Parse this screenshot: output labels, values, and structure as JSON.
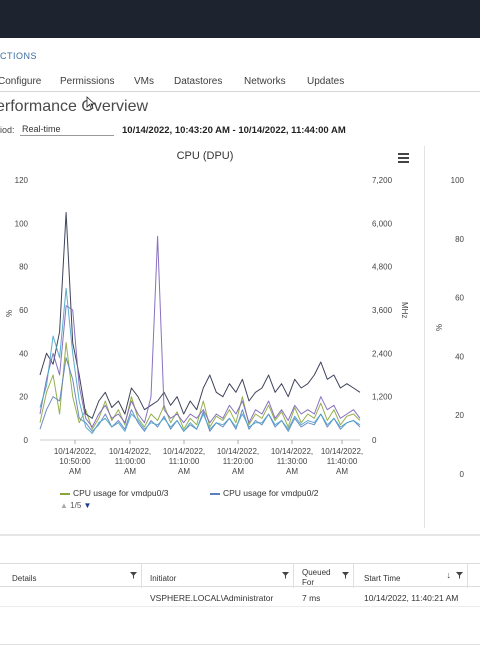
{
  "header": {
    "actions_label": "CTIONS"
  },
  "tabs": [
    {
      "label": "Configure"
    },
    {
      "label": "Permissions"
    },
    {
      "label": "VMs"
    },
    {
      "label": "Datastores"
    },
    {
      "label": "Networks"
    },
    {
      "label": "Updates"
    }
  ],
  "page_title": "erformance Overview",
  "period": {
    "label": "iod:",
    "value": "Real-time"
  },
  "time_range": "10/14/2022, 10:43:20 AM - 10/14/2022, 11:44:00 AM",
  "chart_data": [
    {
      "type": "line",
      "title": "CPU (DPU)",
      "ylabel": "%",
      "y2label": "MHz",
      "ylim": [
        0,
        120
      ],
      "y2lim": [
        0,
        7200
      ],
      "yticks": [
        "120",
        "100",
        "80",
        "60",
        "40",
        "20",
        "0"
      ],
      "y2ticks": [
        "7,200",
        "6,000",
        "4,800",
        "3,600",
        "2,400",
        "1,200",
        "0"
      ],
      "xticks": [
        [
          "10/14/2022,",
          "10:50:00",
          "AM"
        ],
        [
          "10/14/2022,",
          "11:00:00",
          "AM"
        ],
        [
          "10/14/2022,",
          "11:10:00",
          "AM"
        ],
        [
          "10/14/2022,",
          "11:20:00",
          "AM"
        ],
        [
          "10/14/2022,",
          "11:30:00",
          "AM"
        ],
        [
          "10/14/2022,",
          "11:40:00",
          "AM"
        ]
      ],
      "series": [
        {
          "name": "CPU usage for vmdpu0/3",
          "color": "#8aa63a",
          "values": [
            8,
            22,
            30,
            12,
            45,
            20,
            8,
            14,
            5,
            10,
            18,
            9,
            14,
            7,
            20,
            10,
            6,
            12,
            9,
            16,
            8,
            13,
            5,
            10,
            7,
            18,
            6,
            11,
            9,
            14,
            8,
            20,
            7,
            12,
            10,
            16,
            9,
            13,
            6,
            15,
            8,
            12,
            10,
            17,
            9,
            14,
            7,
            11,
            12,
            9
          ]
        },
        {
          "name": "CPU usage for vmdpu0/2",
          "color": "#5a80c0",
          "values": [
            5,
            14,
            20,
            18,
            38,
            28,
            10,
            8,
            4,
            7,
            12,
            6,
            9,
            5,
            14,
            8,
            4,
            9,
            6,
            11,
            5,
            9,
            4,
            7,
            5,
            13,
            4,
            8,
            6,
            10,
            5,
            14,
            5,
            9,
            7,
            12,
            6,
            9,
            4,
            10,
            6,
            8,
            7,
            12,
            6,
            10,
            5,
            8,
            9,
            6
          ]
        },
        {
          "values": [
            30,
            40,
            35,
            50,
            105,
            45,
            30,
            12,
            10,
            18,
            22,
            15,
            18,
            12,
            24,
            20,
            14,
            16,
            18,
            22,
            16,
            20,
            12,
            18,
            14,
            24,
            30,
            22,
            20,
            26,
            22,
            28,
            18,
            22,
            24,
            30,
            22,
            26,
            20,
            28,
            24,
            26,
            30,
            36,
            28,
            30,
            24,
            26,
            24,
            22
          ],
          "color": "#2a2f48"
        },
        {
          "values": [
            12,
            28,
            40,
            30,
            62,
            60,
            25,
            10,
            6,
            12,
            16,
            10,
            12,
            8,
            18,
            12,
            8,
            20,
            94,
            14,
            10,
            12,
            8,
            12,
            10,
            14,
            8,
            12,
            10,
            16,
            12,
            18,
            8,
            14,
            12,
            18,
            10,
            14,
            9,
            16,
            12,
            14,
            12,
            20,
            14,
            16,
            10,
            12,
            14,
            10
          ],
          "color": "#7b62b8"
        },
        {
          "values": [
            15,
            25,
            48,
            38,
            70,
            40,
            18,
            6,
            3,
            8,
            10,
            6,
            8,
            4,
            12,
            9,
            5,
            8,
            7,
            10,
            6,
            9,
            4,
            8,
            5,
            12,
            5,
            8,
            7,
            10,
            6,
            12,
            6,
            8,
            8,
            12,
            7,
            9,
            5,
            11,
            7,
            9,
            8,
            12,
            7,
            10,
            6,
            8,
            9,
            7
          ],
          "color": "#4aa3c8"
        }
      ],
      "legend_pager": "1/5"
    },
    {
      "type": "line",
      "ylabel": "%",
      "yticks": [
        "100",
        "80",
        "60",
        "40",
        "20",
        "0"
      ],
      "ylim": [
        0,
        100
      ]
    }
  ],
  "table": {
    "columns": [
      {
        "label": "Details"
      },
      {
        "label": "Initiator"
      },
      {
        "label": "Queued For"
      },
      {
        "label": "Start Time"
      }
    ],
    "rows": [
      {
        "initiator": "VSPHERE.LOCAL\\Administrator",
        "queued_for": "7 ms",
        "start_time": "10/14/2022, 11:40:21 AM"
      }
    ]
  }
}
